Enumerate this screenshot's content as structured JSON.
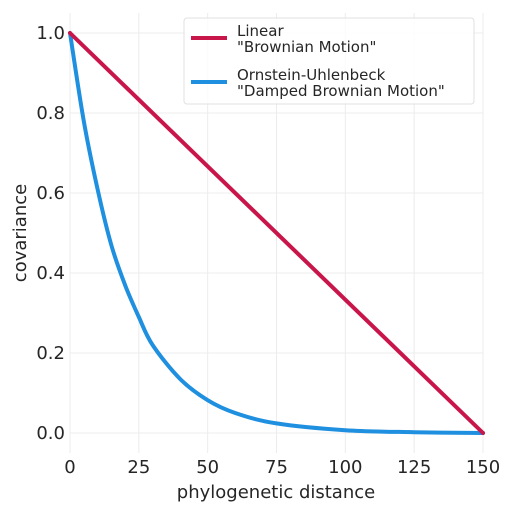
{
  "chart_data": {
    "type": "line",
    "xlabel": "phylogenetic distance",
    "ylabel": "covariance",
    "xlim": [
      0,
      150
    ],
    "ylim": [
      -0.05,
      1.05
    ],
    "xticks": [
      0,
      25,
      50,
      75,
      100,
      125,
      150
    ],
    "xtick_labels": [
      "0",
      "25",
      "50",
      "75",
      "100",
      "125",
      "150"
    ],
    "yticks": [
      0.0,
      0.2,
      0.4,
      0.6,
      0.8,
      1.0
    ],
    "ytick_labels": [
      "0.0",
      "0.2",
      "0.4",
      "0.6",
      "0.8",
      "1.0"
    ],
    "grid": true,
    "legend_position": "top-right",
    "series": [
      {
        "name_lines": [
          "Linear",
          "\"Brownian Motion\""
        ],
        "color": "#c8164b",
        "x": [
          0,
          150
        ],
        "y": [
          1.0,
          0.0
        ]
      },
      {
        "name_lines": [
          "Ornstein-Uhlenbeck",
          "\"Damped Brownian Motion\""
        ],
        "color": "#1f8fdf",
        "x": [
          0,
          5,
          10,
          15,
          20,
          25,
          30,
          40,
          50,
          60,
          75,
          100,
          125,
          150
        ],
        "y": [
          1.0,
          0.78,
          0.61,
          0.47,
          0.37,
          0.29,
          0.22,
          0.135,
          0.082,
          0.05,
          0.024,
          0.007,
          0.002,
          0.0
        ]
      }
    ]
  }
}
